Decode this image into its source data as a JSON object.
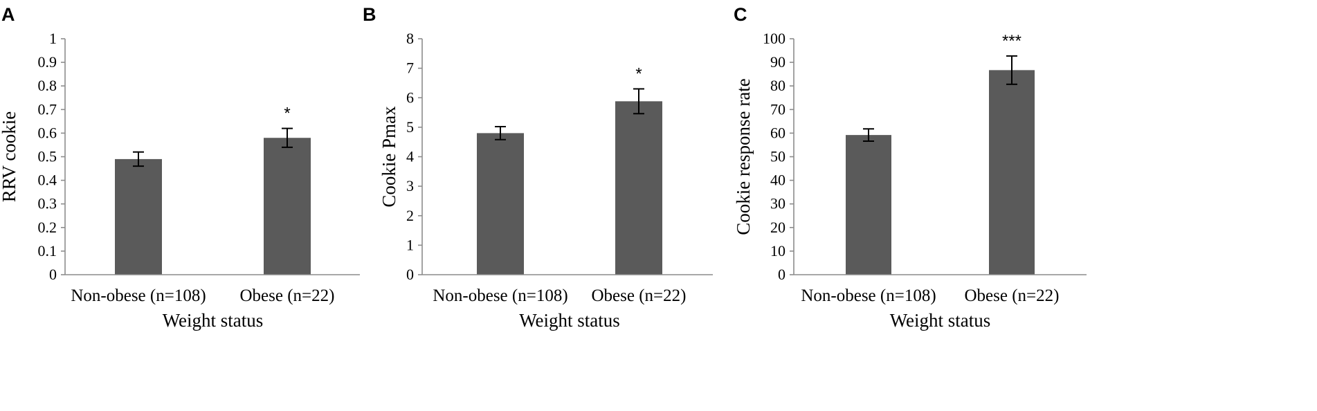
{
  "chart_data": [
    {
      "type": "bar",
      "panel": "A",
      "title": "",
      "xlabel": "Weight status",
      "ylabel": "RRV cookie",
      "categories": [
        "Non-obese (n=108)",
        "Obese (n=22)"
      ],
      "values": [
        0.49,
        0.58
      ],
      "errors": [
        0.03,
        0.04
      ],
      "significance": [
        "",
        "*"
      ],
      "ylim": [
        0,
        1
      ],
      "yticks": [
        "0",
        "0.1",
        "0.2",
        "0.3",
        "0.4",
        "0.5",
        "0.6",
        "0.7",
        "0.8",
        "0.9",
        "1"
      ],
      "grid": false
    },
    {
      "type": "bar",
      "panel": "B",
      "title": "",
      "xlabel": "Weight status",
      "ylabel": "Cookie Pmax",
      "categories": [
        "Non-obese (n=108)",
        "Obese (n=22)"
      ],
      "values": [
        4.8,
        5.88
      ],
      "errors": [
        0.22,
        0.42
      ],
      "significance": [
        "",
        "*"
      ],
      "ylim": [
        0,
        8
      ],
      "yticks": [
        "0",
        "1",
        "2",
        "3",
        "4",
        "5",
        "6",
        "7",
        "8"
      ],
      "grid": false
    },
    {
      "type": "bar",
      "panel": "C",
      "title": "",
      "xlabel": "Weight status",
      "ylabel": "Cookie response rate",
      "categories": [
        "Non-obese (n=108)",
        "Obese (n=22)"
      ],
      "values": [
        59.2,
        86.7
      ],
      "errors": [
        2.6,
        6.0
      ],
      "significance": [
        "",
        "***"
      ],
      "ylim": [
        0,
        100
      ],
      "yticks": [
        "0",
        "10",
        "20",
        "30",
        "40",
        "50",
        "60",
        "70",
        "80",
        "90",
        "100"
      ],
      "grid": false
    }
  ],
  "colors": {
    "bar": "#5a5a5a",
    "axis": "#8c8c8c",
    "error_bar": "#000000"
  }
}
